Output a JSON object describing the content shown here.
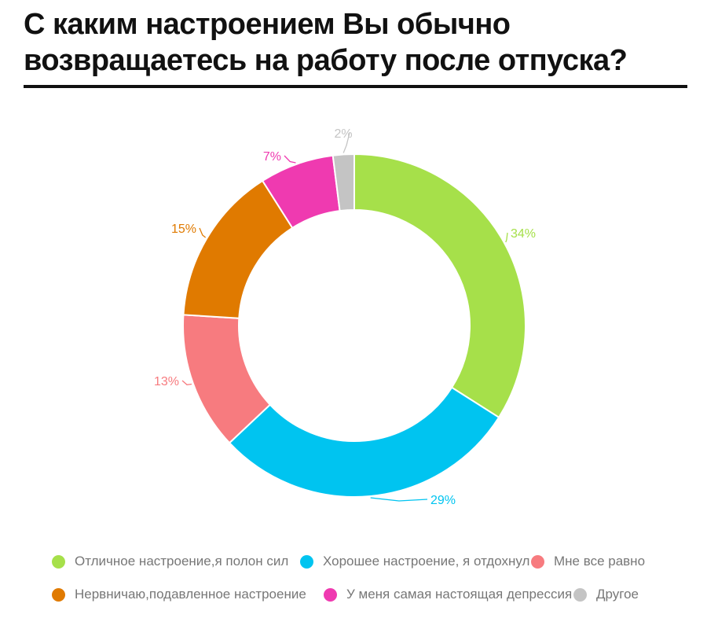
{
  "title_line1": "С каким настроением Вы обычно",
  "title_line2": "возвращаетесь на работу после отпуска?",
  "chart_data": {
    "type": "pie",
    "donut": true,
    "title": "С каким настроением Вы обычно возвращаетесь на работу после отпуска?",
    "legend_position": "bottom",
    "slices": [
      {
        "label": "Отличное настроение,я полон сил",
        "value": 34,
        "display": "34%",
        "color": "#a6e04a"
      },
      {
        "label": "Хорошее настроение, я отдохнул",
        "value": 29,
        "display": "29%",
        "color": "#00c4f0"
      },
      {
        "label": "Мне все равно",
        "value": 13,
        "display": "13%",
        "color": "#f77b7f"
      },
      {
        "label": "Нервничаю,подавленное настроение",
        "value": 15,
        "display": "15%",
        "color": "#e07a00"
      },
      {
        "label": "У меня самая настоящая депрессия",
        "value": 7,
        "display": "7%",
        "color": "#ef3ab0"
      },
      {
        "label": "Другое",
        "value": 2,
        "display": "2%",
        "color": "#c4c4c4"
      }
    ]
  }
}
